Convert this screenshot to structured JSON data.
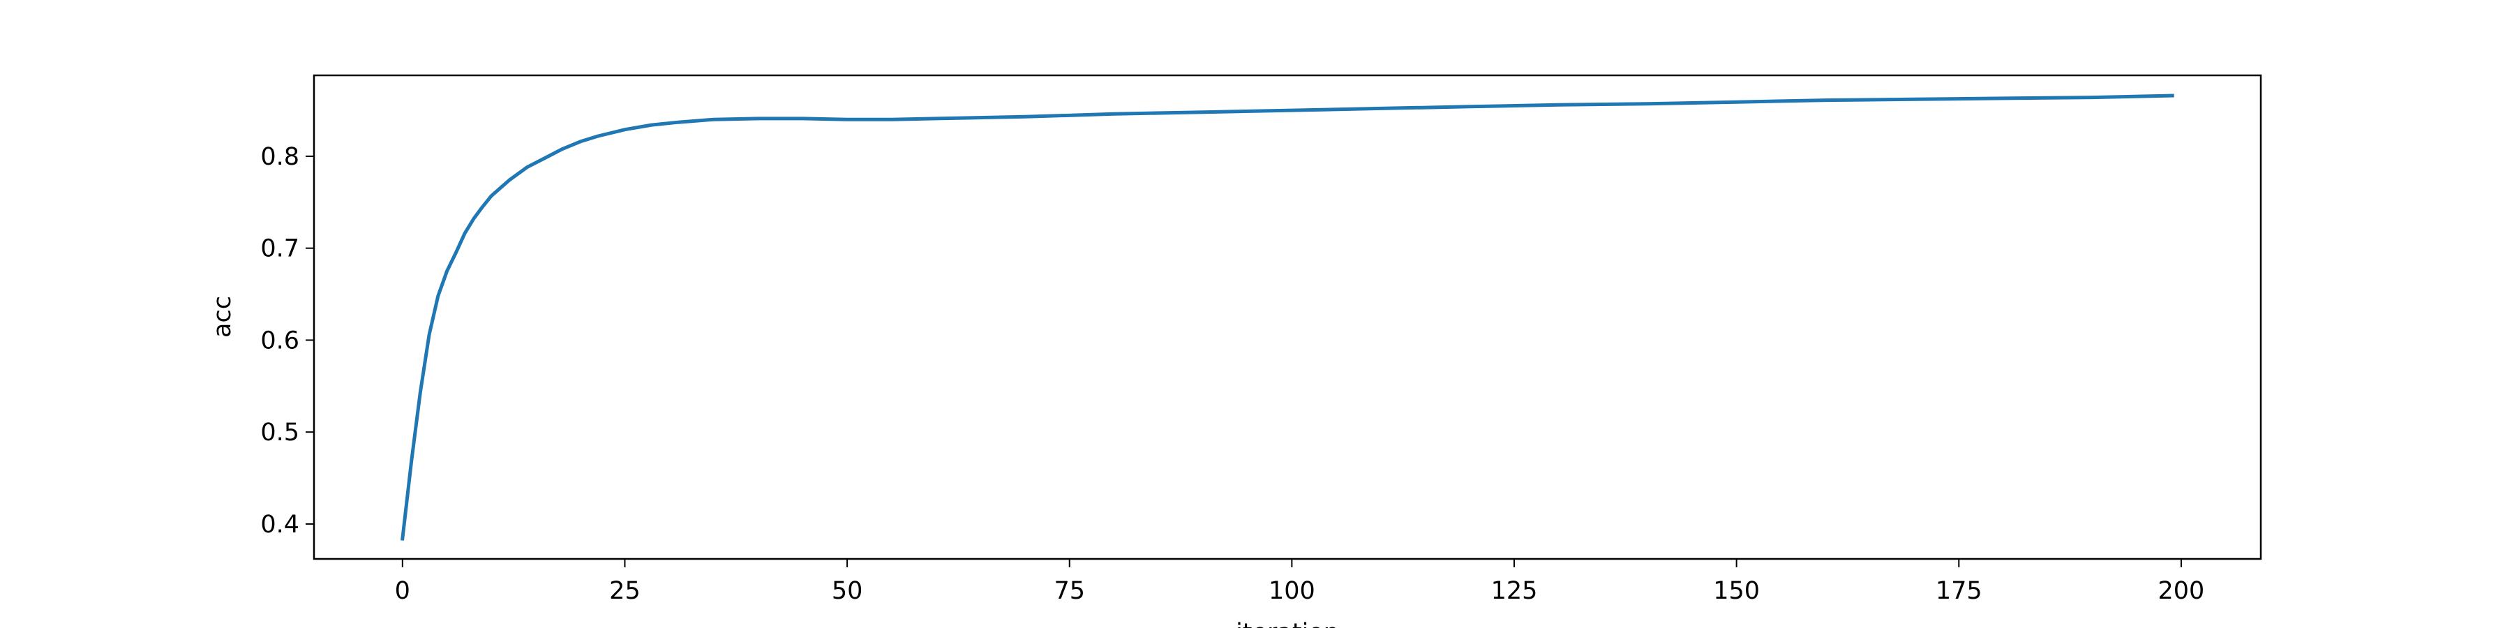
{
  "chart_data": {
    "type": "line",
    "title": "",
    "xlabel": "iteration",
    "ylabel": "acc",
    "xlim": [
      -9.95,
      208.95
    ],
    "ylim": [
      0.362,
      0.888
    ],
    "grid": false,
    "legend": "none",
    "line_color": "#1f77b4",
    "xticks": [
      {
        "value": 0,
        "label": "0"
      },
      {
        "value": 25,
        "label": "25"
      },
      {
        "value": 50,
        "label": "50"
      },
      {
        "value": 75,
        "label": "75"
      },
      {
        "value": 100,
        "label": "100"
      },
      {
        "value": 125,
        "label": "125"
      },
      {
        "value": 150,
        "label": "150"
      },
      {
        "value": 175,
        "label": "175"
      },
      {
        "value": 200,
        "label": "200"
      }
    ],
    "yticks": [
      {
        "value": 0.4,
        "label": "0.4"
      },
      {
        "value": 0.5,
        "label": "0.5"
      },
      {
        "value": 0.6,
        "label": "0.6"
      },
      {
        "value": 0.7,
        "label": "0.7"
      },
      {
        "value": 0.8,
        "label": "0.8"
      }
    ],
    "series": [
      {
        "points": [
          [
            0,
            0.384
          ],
          [
            1,
            0.468
          ],
          [
            2,
            0.543
          ],
          [
            3,
            0.606
          ],
          [
            4,
            0.648
          ],
          [
            5,
            0.675
          ],
          [
            6,
            0.695
          ],
          [
            7,
            0.716
          ],
          [
            8,
            0.732
          ],
          [
            9,
            0.745
          ],
          [
            10,
            0.757
          ],
          [
            12,
            0.774
          ],
          [
            14,
            0.788
          ],
          [
            16,
            0.798
          ],
          [
            18,
            0.808
          ],
          [
            20,
            0.816
          ],
          [
            22,
            0.822
          ],
          [
            25,
            0.829
          ],
          [
            28,
            0.834
          ],
          [
            31,
            0.837
          ],
          [
            35,
            0.84
          ],
          [
            40,
            0.841
          ],
          [
            45,
            0.841
          ],
          [
            50,
            0.84
          ],
          [
            55,
            0.84
          ],
          [
            60,
            0.841
          ],
          [
            70,
            0.843
          ],
          [
            80,
            0.846
          ],
          [
            90,
            0.848
          ],
          [
            100,
            0.85
          ],
          [
            110,
            0.852
          ],
          [
            120,
            0.854
          ],
          [
            130,
            0.856
          ],
          [
            140,
            0.857
          ],
          [
            150,
            0.859
          ],
          [
            160,
            0.861
          ],
          [
            170,
            0.862
          ],
          [
            180,
            0.863
          ],
          [
            190,
            0.864
          ],
          [
            199,
            0.866
          ]
        ]
      }
    ]
  }
}
